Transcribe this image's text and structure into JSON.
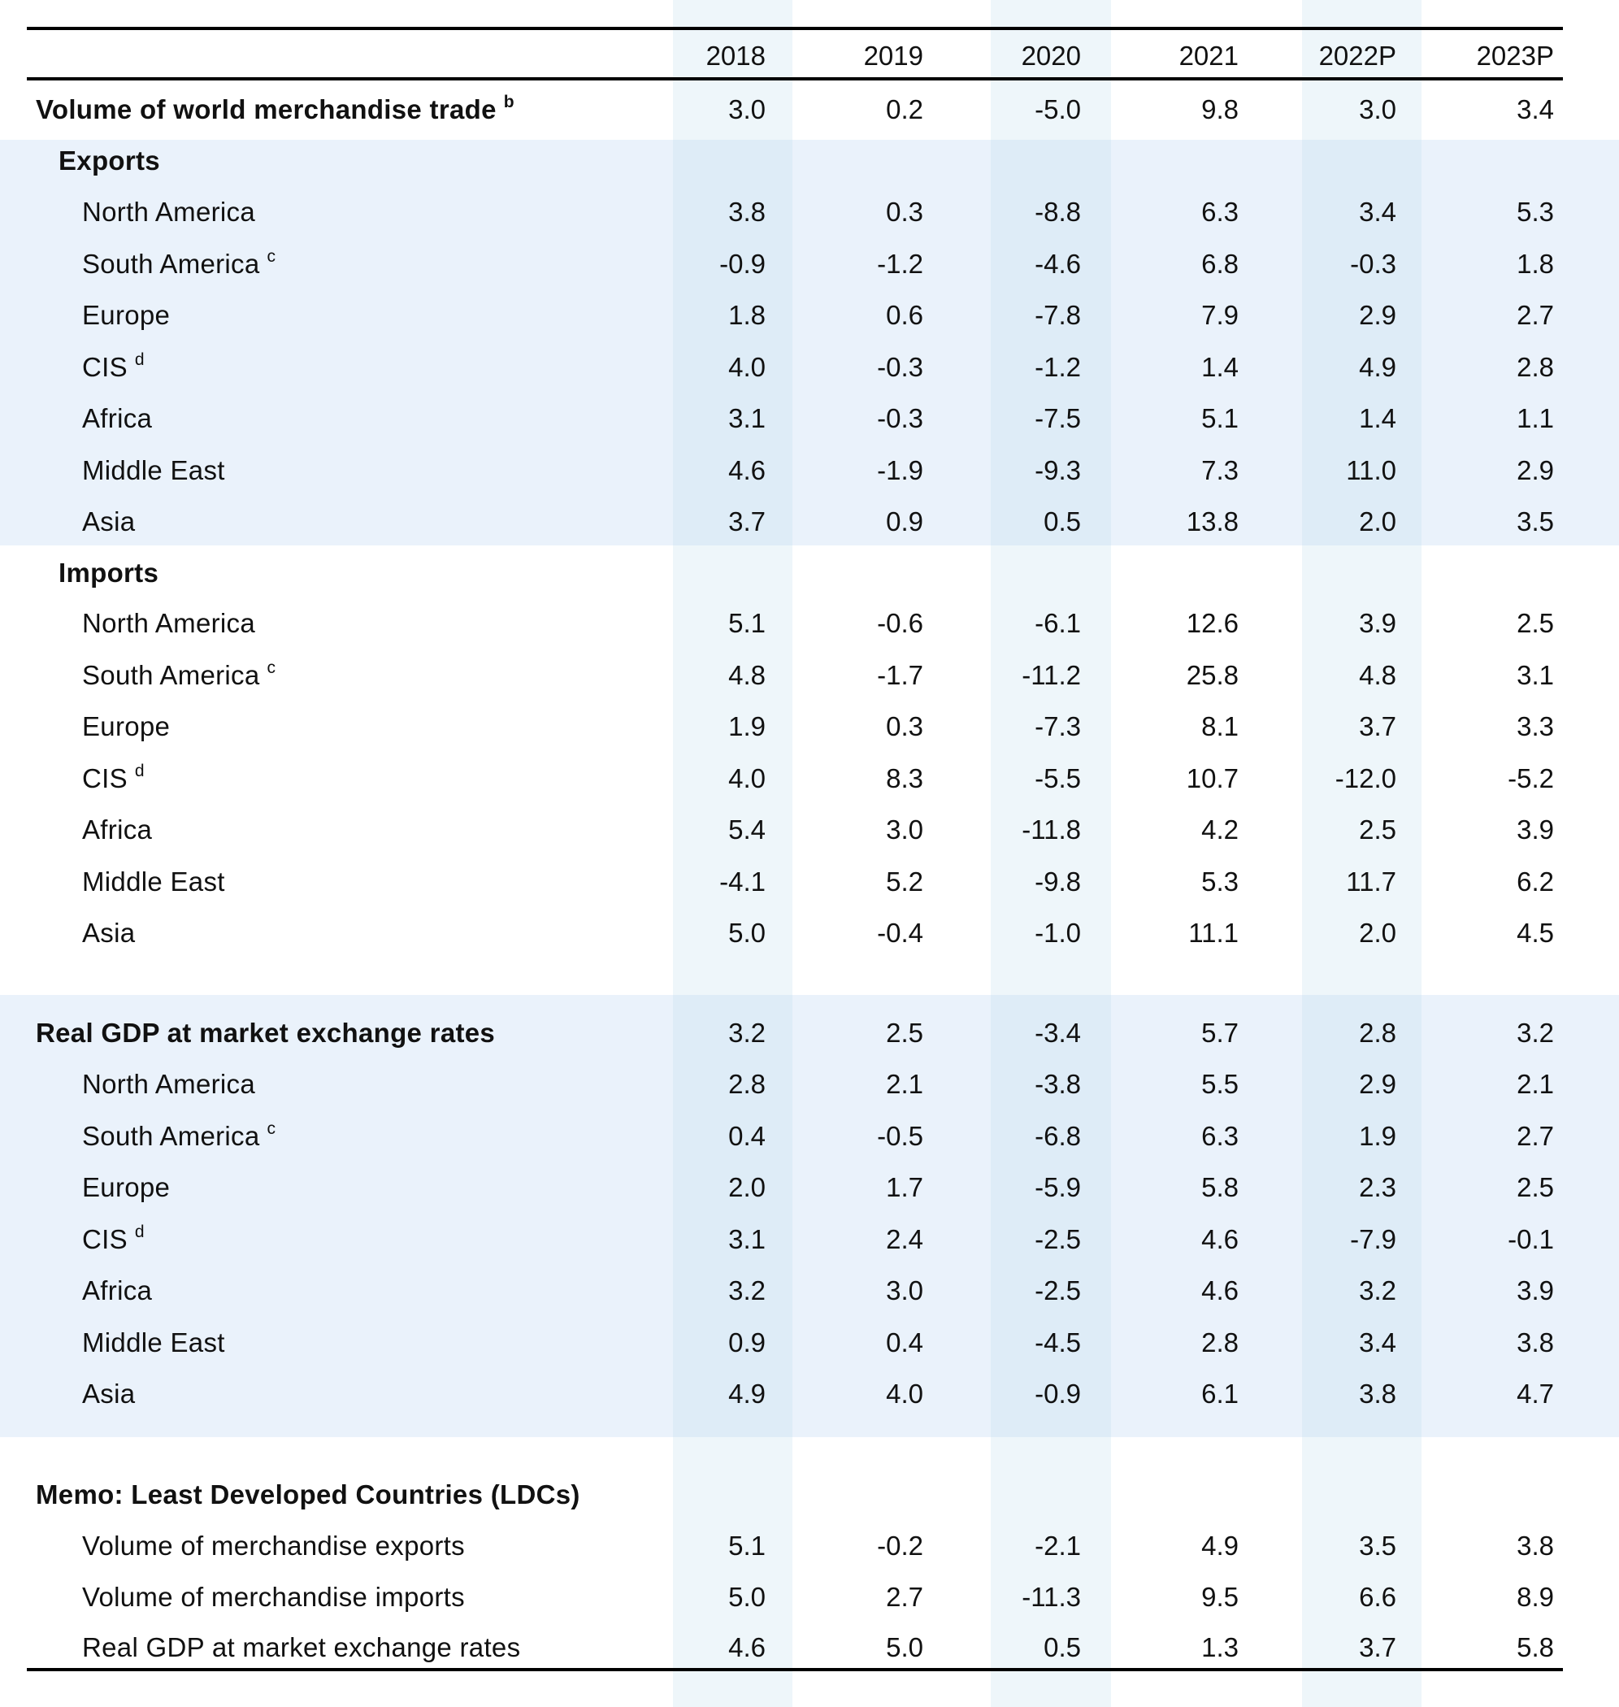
{
  "table": {
    "columns": [
      "2018",
      "2019",
      "2020",
      "2021",
      "2022P",
      "2023P"
    ],
    "world_trade": {
      "label": "Volume of world merchandise trade",
      "note": "b",
      "values": [
        "3.0",
        "0.2",
        "-5.0",
        "9.8",
        "3.0",
        "3.4"
      ]
    },
    "exports": {
      "label": "Exports",
      "rows": [
        {
          "label": "North America",
          "note": "",
          "values": [
            "3.8",
            "0.3",
            "-8.8",
            "6.3",
            "3.4",
            "5.3"
          ]
        },
        {
          "label": "South America",
          "note": "c",
          "values": [
            "-0.9",
            "-1.2",
            "-4.6",
            "6.8",
            "-0.3",
            "1.8"
          ]
        },
        {
          "label": "Europe",
          "note": "",
          "values": [
            "1.8",
            "0.6",
            "-7.8",
            "7.9",
            "2.9",
            "2.7"
          ]
        },
        {
          "label": "CIS",
          "note": "d",
          "values": [
            "4.0",
            "-0.3",
            "-1.2",
            "1.4",
            "4.9",
            "2.8"
          ]
        },
        {
          "label": "Africa",
          "note": "",
          "values": [
            "3.1",
            "-0.3",
            "-7.5",
            "5.1",
            "1.4",
            "1.1"
          ]
        },
        {
          "label": "Middle East",
          "note": "",
          "values": [
            "4.6",
            "-1.9",
            "-9.3",
            "7.3",
            "11.0",
            "2.9"
          ]
        },
        {
          "label": "Asia",
          "note": "",
          "values": [
            "3.7",
            "0.9",
            "0.5",
            "13.8",
            "2.0",
            "3.5"
          ]
        }
      ]
    },
    "imports": {
      "label": "Imports",
      "rows": [
        {
          "label": "North America",
          "note": "",
          "values": [
            "5.1",
            "-0.6",
            "-6.1",
            "12.6",
            "3.9",
            "2.5"
          ]
        },
        {
          "label": "South America",
          "note": "c",
          "values": [
            "4.8",
            "-1.7",
            "-11.2",
            "25.8",
            "4.8",
            "3.1"
          ]
        },
        {
          "label": "Europe",
          "note": "",
          "values": [
            "1.9",
            "0.3",
            "-7.3",
            "8.1",
            "3.7",
            "3.3"
          ]
        },
        {
          "label": "CIS",
          "note": "d",
          "values": [
            "4.0",
            "8.3",
            "-5.5",
            "10.7",
            "-12.0",
            "-5.2"
          ]
        },
        {
          "label": "Africa",
          "note": "",
          "values": [
            "5.4",
            "3.0",
            "-11.8",
            "4.2",
            "2.5",
            "3.9"
          ]
        },
        {
          "label": "Middle East",
          "note": "",
          "values": [
            "-4.1",
            "5.2",
            "-9.8",
            "5.3",
            "11.7",
            "6.2"
          ]
        },
        {
          "label": "Asia",
          "note": "",
          "values": [
            "5.0",
            "-0.4",
            "-1.0",
            "11.1",
            "2.0",
            "4.5"
          ]
        }
      ]
    },
    "gdp": {
      "label": "Real GDP at market exchange rates",
      "values": [
        "3.2",
        "2.5",
        "-3.4",
        "5.7",
        "2.8",
        "3.2"
      ],
      "rows": [
        {
          "label": "North America",
          "note": "",
          "values": [
            "2.8",
            "2.1",
            "-3.8",
            "5.5",
            "2.9",
            "2.1"
          ]
        },
        {
          "label": "South America",
          "note": "c",
          "values": [
            "0.4",
            "-0.5",
            "-6.8",
            "6.3",
            "1.9",
            "2.7"
          ]
        },
        {
          "label": "Europe",
          "note": "",
          "values": [
            "2.0",
            "1.7",
            "-5.9",
            "5.8",
            "2.3",
            "2.5"
          ]
        },
        {
          "label": "CIS",
          "note": "d",
          "values": [
            "3.1",
            "2.4",
            "-2.5",
            "4.6",
            "-7.9",
            "-0.1"
          ]
        },
        {
          "label": "Africa",
          "note": "",
          "values": [
            "3.2",
            "3.0",
            "-2.5",
            "4.6",
            "3.2",
            "3.9"
          ]
        },
        {
          "label": "Middle East",
          "note": "",
          "values": [
            "0.9",
            "0.4",
            "-4.5",
            "2.8",
            "3.4",
            "3.8"
          ]
        },
        {
          "label": "Asia",
          "note": "",
          "values": [
            "4.9",
            "4.0",
            "-0.9",
            "6.1",
            "3.8",
            "4.7"
          ]
        }
      ]
    },
    "memo": {
      "label": "Memo: Least Developed Countries (LDCs)",
      "rows": [
        {
          "label": "Volume of merchandise exports",
          "note": "",
          "values": [
            "5.1",
            "-0.2",
            "-2.1",
            "4.9",
            "3.5",
            "3.8"
          ]
        },
        {
          "label": "Volume of merchandise imports",
          "note": "",
          "values": [
            "5.0",
            "2.7",
            "-11.3",
            "9.5",
            "6.6",
            "8.9"
          ]
        },
        {
          "label": "Real GDP at market exchange rates",
          "note": "",
          "values": [
            "4.6",
            "5.0",
            "0.5",
            "1.3",
            "3.7",
            "5.8"
          ]
        }
      ]
    }
  },
  "colors": {
    "section_band": "#EAF2FB",
    "column_band": "#EEF6FB",
    "rule": "#000000"
  }
}
